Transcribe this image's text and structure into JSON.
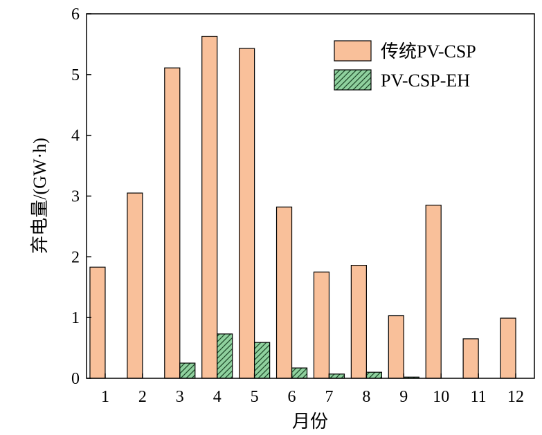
{
  "chart_data": {
    "type": "bar",
    "xlabel": "月份",
    "ylabel": "弃电量/(GW·h)",
    "categories": [
      "1",
      "2",
      "3",
      "4",
      "5",
      "6",
      "7",
      "8",
      "9",
      "10",
      "11",
      "12"
    ],
    "ylim": [
      0,
      6
    ],
    "yticks": [
      0,
      1,
      2,
      3,
      4,
      5,
      6
    ],
    "legend_position": "top-right",
    "grid": false,
    "series": [
      {
        "name": "传统PV-CSP",
        "color": "#f9c09a",
        "pattern": "solid",
        "values": [
          1.83,
          3.05,
          5.11,
          5.63,
          5.43,
          2.82,
          1.75,
          1.86,
          1.03,
          2.85,
          0.65,
          0.99
        ]
      },
      {
        "name": "PV-CSP-EH",
        "color": "#8fd19e",
        "pattern": "hatched",
        "values": [
          0,
          0,
          0.25,
          0.73,
          0.59,
          0.17,
          0.07,
          0.1,
          0.02,
          0,
          0,
          0
        ]
      }
    ]
  }
}
